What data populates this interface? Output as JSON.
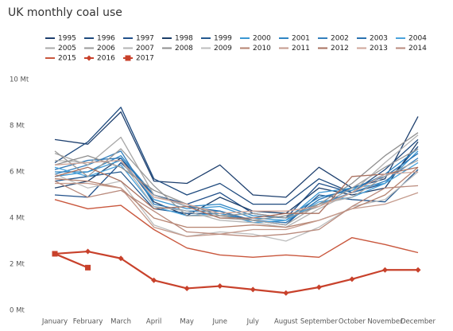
{
  "chart_data": {
    "type": "line",
    "title": "UK monthly coal use",
    "categories": [
      "January",
      "February",
      "March",
      "April",
      "May",
      "June",
      "July",
      "August",
      "September",
      "October",
      "November",
      "December"
    ],
    "ylim": [
      0,
      10
    ],
    "yticks": [
      {
        "value": 0,
        "label": "0 Mt"
      },
      {
        "value": 2,
        "label": "2 Mt"
      },
      {
        "value": 4,
        "label": "4 Mt"
      },
      {
        "value": 6,
        "label": "6 Mt"
      },
      {
        "value": 8,
        "label": "8 Mt"
      },
      {
        "value": 10,
        "label": "10 Mt"
      }
    ],
    "grid": false,
    "series": [
      {
        "name": "1995",
        "color": "#1d3f6e",
        "values": [
          7.4,
          7.2,
          8.6,
          5.6,
          5.5,
          6.3,
          5.0,
          4.9,
          6.2,
          5.3,
          5.7,
          8.4
        ]
      },
      {
        "name": "1996",
        "color": "#1e4a7e",
        "values": [
          6.4,
          7.3,
          8.8,
          5.7,
          5.0,
          5.5,
          4.6,
          4.6,
          5.7,
          5.1,
          6.1,
          7.4
        ]
      },
      {
        "name": "1997",
        "color": "#21508a",
        "values": [
          5.0,
          4.9,
          6.4,
          5.0,
          4.6,
          5.1,
          4.2,
          4.0,
          5.5,
          5.1,
          5.5,
          7.1
        ]
      },
      {
        "name": "1998",
        "color": "#1b3d68",
        "values": [
          5.3,
          5.6,
          6.6,
          4.7,
          4.1,
          4.9,
          4.3,
          4.2,
          5.3,
          5.0,
          5.3,
          7.3
        ]
      },
      {
        "name": "1999",
        "color": "#24588f",
        "values": [
          5.6,
          5.8,
          6.0,
          4.4,
          4.2,
          4.2,
          3.9,
          3.7,
          5.0,
          4.8,
          4.7,
          6.1
        ]
      },
      {
        "name": "2000",
        "color": "#3b97d3",
        "values": [
          5.8,
          6.0,
          6.5,
          4.8,
          4.4,
          4.5,
          4.0,
          3.9,
          5.1,
          5.3,
          5.5,
          6.9
        ]
      },
      {
        "name": "2001",
        "color": "#2f86c4",
        "values": [
          6.0,
          6.0,
          6.7,
          5.0,
          4.5,
          4.6,
          4.1,
          4.0,
          4.9,
          5.2,
          5.9,
          7.0
        ]
      },
      {
        "name": "2002",
        "color": "#3480bd",
        "values": [
          5.9,
          6.3,
          6.9,
          4.6,
          4.3,
          4.3,
          3.8,
          3.9,
          4.6,
          5.1,
          5.6,
          6.6
        ]
      },
      {
        "name": "2003",
        "color": "#2a72b0",
        "values": [
          6.1,
          6.5,
          6.6,
          5.0,
          4.5,
          4.3,
          3.9,
          3.8,
          4.8,
          5.3,
          5.8,
          6.8
        ]
      },
      {
        "name": "2004",
        "color": "#4aa3dc",
        "values": [
          6.2,
          5.8,
          6.3,
          4.5,
          4.1,
          4.2,
          3.8,
          3.9,
          4.7,
          4.9,
          5.5,
          6.4
        ]
      },
      {
        "name": "2005",
        "color": "#a8a8a8",
        "values": [
          6.8,
          6.3,
          7.5,
          5.0,
          4.5,
          4.0,
          3.9,
          3.7,
          4.6,
          4.9,
          5.8,
          6.5
        ]
      },
      {
        "name": "2006",
        "color": "#9a9a9a",
        "values": [
          6.9,
          5.8,
          7.0,
          5.4,
          4.1,
          4.1,
          4.2,
          4.0,
          4.5,
          5.3,
          6.2,
          7.0
        ]
      },
      {
        "name": "2007",
        "color": "#b3b3b3",
        "values": [
          6.5,
          6.4,
          6.5,
          4.5,
          4.3,
          3.9,
          3.8,
          3.6,
          4.4,
          5.1,
          6.4,
          7.6
        ]
      },
      {
        "name": "2008",
        "color": "#8f8f8f",
        "values": [
          6.3,
          6.7,
          6.2,
          5.2,
          4.6,
          4.1,
          3.9,
          4.1,
          4.6,
          5.5,
          6.7,
          7.7
        ]
      },
      {
        "name": "2009",
        "color": "#bdbdbd",
        "values": [
          5.9,
          5.3,
          5.6,
          3.7,
          3.2,
          3.4,
          3.3,
          3.0,
          3.6,
          4.5,
          4.8,
          6.0
        ]
      },
      {
        "name": "2010",
        "color": "#b5826f",
        "values": [
          5.7,
          5.6,
          5.3,
          4.0,
          3.6,
          3.6,
          3.7,
          3.6,
          3.9,
          4.4,
          5.0,
          6.2
        ]
      },
      {
        "name": "2011",
        "color": "#c49a8c",
        "values": [
          5.5,
          5.5,
          5.3,
          3.6,
          3.2,
          3.3,
          3.5,
          3.5,
          3.9,
          4.4,
          4.6,
          5.1
        ]
      },
      {
        "name": "2012",
        "color": "#a9705f",
        "values": [
          5.8,
          6.2,
          5.6,
          4.4,
          4.5,
          4.0,
          4.0,
          4.2,
          4.2,
          5.8,
          5.9,
          6.2
        ]
      },
      {
        "name": "2013",
        "color": "#cfa598",
        "values": [
          6.3,
          6.4,
          6.5,
          4.9,
          4.6,
          4.2,
          4.3,
          4.3,
          4.5,
          5.1,
          5.9,
          6.0
        ]
      },
      {
        "name": "2014",
        "color": "#b98a7c",
        "values": [
          5.6,
          4.9,
          5.2,
          4.3,
          3.4,
          3.3,
          3.2,
          3.3,
          3.5,
          4.5,
          5.3,
          5.4
        ]
      },
      {
        "name": "2015",
        "color": "#c9573d",
        "values": [
          4.8,
          4.4,
          4.55,
          3.5,
          2.7,
          2.4,
          2.3,
          2.4,
          2.3,
          3.15,
          2.85,
          2.5
        ]
      },
      {
        "name": "2016",
        "color": "#c8412b",
        "marker": "diamond",
        "values": [
          2.45,
          2.55,
          2.25,
          1.3,
          0.95,
          1.05,
          0.9,
          0.75,
          1.0,
          1.35,
          1.75,
          1.75
        ]
      },
      {
        "name": "2017",
        "color": "#c8412b",
        "marker": "square",
        "values": [
          2.45,
          1.85,
          null,
          null,
          null,
          null,
          null,
          null,
          null,
          null,
          null,
          null
        ]
      }
    ]
  }
}
